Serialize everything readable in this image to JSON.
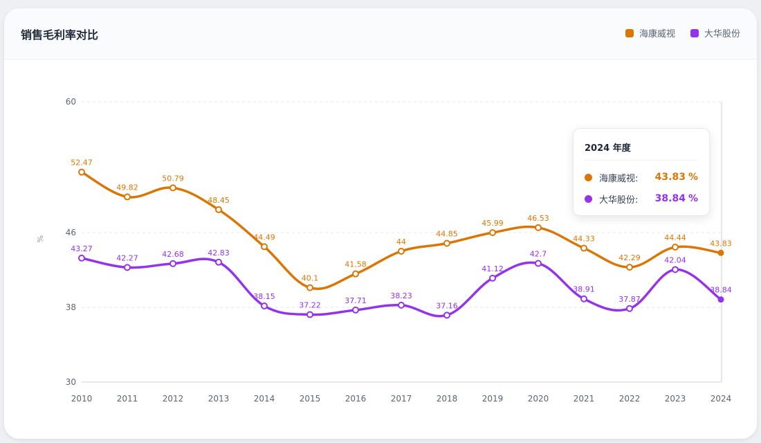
{
  "colors": {
    "hikvision": "#d97706",
    "dahua": "#9333ea"
  },
  "chart_data": {
    "type": "line",
    "title": "销售毛利率对比",
    "xlabel": "",
    "ylabel": "%",
    "categories": [
      "2010",
      "2011",
      "2012",
      "2013",
      "2014",
      "2015",
      "2016",
      "2017",
      "2018",
      "2019",
      "2020",
      "2021",
      "2022",
      "2023",
      "2024"
    ],
    "yticks": [
      "60",
      "46",
      "38",
      "30"
    ],
    "series": [
      {
        "name": "海康威视",
        "values": [
          52.47,
          49.82,
          50.79,
          48.45,
          44.49,
          40.1,
          41.58,
          44,
          44.85,
          45.99,
          46.53,
          44.33,
          42.29,
          44.44,
          43.83
        ]
      },
      {
        "name": "大华股份",
        "values": [
          43.27,
          42.27,
          42.68,
          42.83,
          38.15,
          37.22,
          37.71,
          38.23,
          37.16,
          41.12,
          42.7,
          38.91,
          37.87,
          42.04,
          38.84
        ]
      }
    ],
    "legend_position": "top-right",
    "grid": true
  },
  "tooltip": {
    "title": "2024 年度",
    "rows": [
      {
        "name": "海康威视:",
        "value": "43.83",
        "unit": "%"
      },
      {
        "name": "大华股份:",
        "value": "38.84",
        "unit": "%"
      }
    ]
  }
}
